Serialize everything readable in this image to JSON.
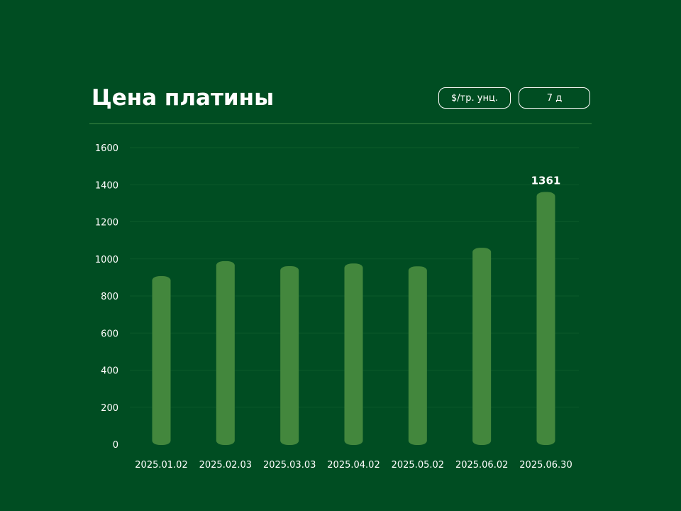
{
  "header": {
    "title": "Цена платины",
    "unit_toggle": "$/тр. унц.",
    "range_toggle": "7 д"
  },
  "colors": {
    "background": "#004d22",
    "bar": "#43873d",
    "grid": "#0c5a2a",
    "text": "#ffffff"
  },
  "chart_data": {
    "type": "bar",
    "title": "Цена платины",
    "xlabel": "",
    "ylabel": "",
    "categories": [
      "2025.01.02",
      "2025.02.03",
      "2025.03.03",
      "2025.04.02",
      "2025.05.02",
      "2025.06.02",
      "2025.06.30"
    ],
    "values": [
      907,
      988,
      961,
      975,
      960,
      1060,
      1361
    ],
    "ylim": [
      0,
      1600
    ],
    "yticks": [
      0,
      200,
      400,
      600,
      800,
      1000,
      1200,
      1400,
      1600
    ],
    "grid": true,
    "highlight_label": "1361"
  }
}
